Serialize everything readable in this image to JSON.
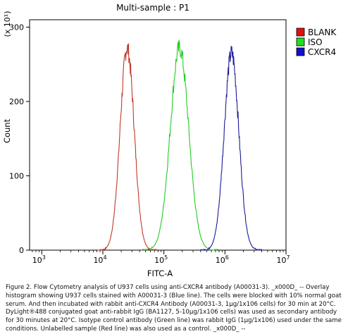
{
  "chart_data": {
    "type": "line",
    "title": "Multi-sample : P1",
    "xlabel": "FITC-A",
    "ylabel": "Count",
    "y_scale_label": "(x 10¹)",
    "x_scale": "log",
    "xlim": [
      631,
      10000000
    ],
    "ylim": [
      0,
      310
    ],
    "x_ticks": [
      {
        "value": 1000,
        "base": "10",
        "exp": "3"
      },
      {
        "value": 10000,
        "base": "10",
        "exp": "4"
      },
      {
        "value": 100000,
        "base": "10",
        "exp": "5"
      },
      {
        "value": 1000000,
        "base": "10",
        "exp": "6"
      },
      {
        "value": 10000000,
        "base": "10",
        "exp": "7"
      }
    ],
    "y_ticks": [
      0,
      100,
      200,
      300
    ],
    "grid": false,
    "legend_position": "right",
    "series": [
      {
        "name": "BLANK",
        "color": "#c0392b",
        "swatch": "#e01010",
        "peak_x": 25000,
        "peak_y": 272,
        "width": 0.115
      },
      {
        "name": "ISO",
        "color": "#22cc22",
        "swatch": "#1ee01e",
        "peak_x": 180000,
        "peak_y": 272,
        "width": 0.15
      },
      {
        "name": "CXCR4",
        "color": "#1a1a9a",
        "swatch": "#1010d0",
        "peak_x": 1280000,
        "peak_y": 265,
        "width": 0.12
      }
    ]
  },
  "caption": "Figure 2. Flow Cytometry analysis of U937 cells using anti-CXCR4 antibody (A00031-3). _x000D_ -- Overlay histogram showing U937 cells stained with A00031-3 (Blue line). The cells were blocked with 10% normal goat serum. And then incubated with rabbit anti-CXCR4 Antibody (A00031-3, 1µg/1x106 cells) for 30 min at 20°C. DyLight®488 conjugated goat anti-rabbit IgG (BA1127, 5-10µg/1x106 cells) was used as secondary antibody for 30 minutes at 20°C. Isotype control antibody (Green line) was rabbit IgG (1µg/1x106) used under the same conditions. Unlabelled sample (Red line) was also used as a control. _x000D_ --"
}
